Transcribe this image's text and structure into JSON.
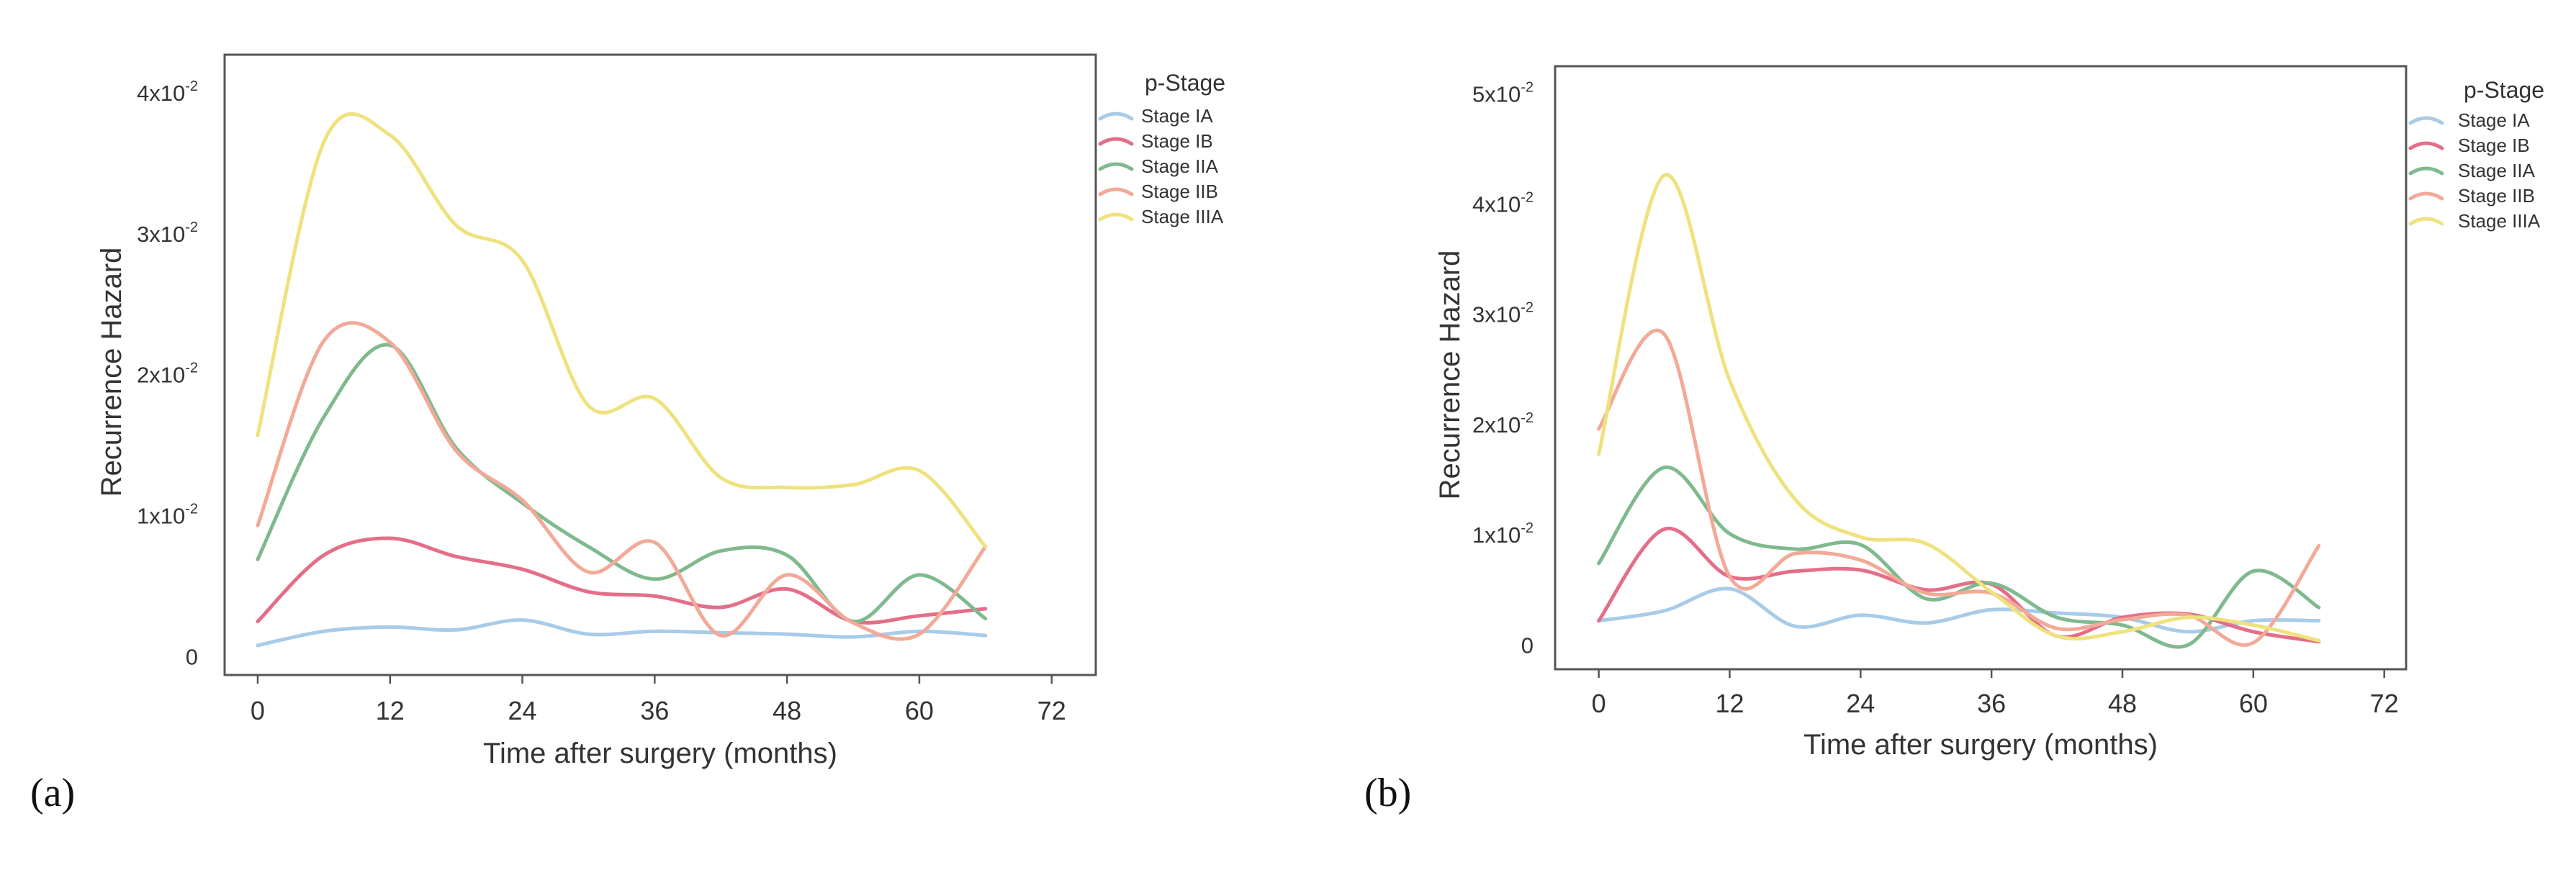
{
  "figure": {
    "colors": {
      "Stage IA": "#a8cbe8",
      "Stage IB": "#e46e88",
      "Stage IIA": "#7fb98e",
      "Stage IIB": "#f2a997",
      "Stage IIIA": "#efe27e"
    },
    "panels_text": [
      "(a)",
      "(b)"
    ]
  },
  "chart_data": [
    {
      "panel_label": "(a)",
      "type": "line",
      "smooth": true,
      "title": "",
      "xlabel": "Time after surgery (months)",
      "ylabel": "Recurrence Hazard",
      "xlim": [
        -3,
        76
      ],
      "ylim": [
        -0.0013,
        0.0427
      ],
      "xticks": [
        0,
        12,
        24,
        36,
        48,
        60,
        72
      ],
      "xtick_labels": [
        "0",
        "12",
        "24",
        "36",
        "48",
        "60",
        "72"
      ],
      "yticks": [
        {
          "value": 0,
          "base": "0",
          "exp": ""
        },
        {
          "value": 0.01,
          "base": "1x10",
          "exp": "-2"
        },
        {
          "value": 0.02,
          "base": "2x10",
          "exp": "-2"
        },
        {
          "value": 0.03,
          "base": "3x10",
          "exp": "-2"
        },
        {
          "value": 0.04,
          "base": "4x10",
          "exp": "-2"
        }
      ],
      "legend": {
        "title": "p-Stage",
        "position": "top-right outside"
      },
      "series": [
        {
          "name": "Stage IA",
          "x": [
            0,
            6,
            12,
            18,
            24,
            30,
            36,
            42,
            48,
            54,
            60,
            66
          ],
          "y": [
            0.0008,
            0.0018,
            0.0021,
            0.0019,
            0.0026,
            0.0016,
            0.0018,
            0.0017,
            0.0016,
            0.0014,
            0.0018,
            0.0015
          ]
        },
        {
          "name": "Stage IB",
          "x": [
            0,
            6,
            12,
            18,
            24,
            30,
            36,
            42,
            48,
            54,
            60,
            66
          ],
          "y": [
            0.0025,
            0.0072,
            0.0084,
            0.0071,
            0.0062,
            0.0046,
            0.0043,
            0.0035,
            0.0048,
            0.0025,
            0.0029,
            0.0034
          ]
        },
        {
          "name": "Stage IIA",
          "x": [
            0,
            6,
            12,
            18,
            24,
            30,
            36,
            42,
            48,
            54,
            60,
            66
          ],
          "y": [
            0.0069,
            0.017,
            0.0221,
            0.0148,
            0.0109,
            0.0078,
            0.0055,
            0.0075,
            0.0072,
            0.0025,
            0.0058,
            0.0027
          ]
        },
        {
          "name": "Stage IIB",
          "x": [
            0,
            6,
            12,
            18,
            24,
            30,
            36,
            42,
            48,
            54,
            60,
            66
          ],
          "y": [
            0.0093,
            0.0224,
            0.0223,
            0.0146,
            0.0111,
            0.006,
            0.0081,
            0.0015,
            0.0058,
            0.0024,
            0.0016,
            0.0078
          ]
        },
        {
          "name": "Stage IIIA",
          "x": [
            0,
            6,
            12,
            18,
            24,
            30,
            36,
            42,
            48,
            54,
            60,
            66
          ],
          "y": [
            0.0157,
            0.0365,
            0.037,
            0.0306,
            0.0281,
            0.0178,
            0.0183,
            0.0127,
            0.012,
            0.0122,
            0.0132,
            0.0078
          ]
        }
      ]
    },
    {
      "panel_label": "(b)",
      "type": "line",
      "smooth": true,
      "title": "",
      "xlabel": "Time after surgery (months)",
      "ylabel": "Recurrence Hazard",
      "xlim": [
        -4,
        74
      ],
      "ylim": [
        -0.0022,
        0.0525
      ],
      "xticks": [
        0,
        12,
        24,
        36,
        48,
        60,
        72
      ],
      "xtick_labels": [
        "0",
        "12",
        "24",
        "36",
        "48",
        "60",
        "72"
      ],
      "yticks": [
        {
          "value": 0,
          "base": "0",
          "exp": ""
        },
        {
          "value": 0.01,
          "base": "1x10",
          "exp": "-2"
        },
        {
          "value": 0.02,
          "base": "2x10",
          "exp": "-2"
        },
        {
          "value": 0.03,
          "base": "3x10",
          "exp": "-2"
        },
        {
          "value": 0.04,
          "base": "4x10",
          "exp": "-2"
        },
        {
          "value": 0.05,
          "base": "5x10",
          "exp": "-2"
        }
      ],
      "legend": {
        "title": "p-Stage",
        "position": "top-right outside"
      },
      "series": [
        {
          "name": "Stage IA",
          "x": [
            0,
            6,
            12,
            18,
            24,
            30,
            36,
            42,
            48,
            54,
            60,
            66
          ],
          "y": [
            0.0022,
            0.0031,
            0.0051,
            0.0017,
            0.0027,
            0.002,
            0.0032,
            0.0029,
            0.0025,
            0.0012,
            0.0022,
            0.0022
          ]
        },
        {
          "name": "Stage IB",
          "x": [
            0,
            6,
            12,
            18,
            24,
            30,
            36,
            42,
            48,
            54,
            60,
            66
          ],
          "y": [
            0.0022,
            0.0105,
            0.0062,
            0.0067,
            0.0068,
            0.005,
            0.0055,
            0.0008,
            0.0025,
            0.0028,
            0.0012,
            0.0003
          ]
        },
        {
          "name": "Stage IIA",
          "x": [
            0,
            6,
            12,
            18,
            24,
            30,
            36,
            42,
            48,
            54,
            60,
            66
          ],
          "y": [
            0.0074,
            0.0161,
            0.0101,
            0.0087,
            0.0091,
            0.0042,
            0.0056,
            0.0025,
            0.0018,
            0.0,
            0.0067,
            0.0034
          ]
        },
        {
          "name": "Stage IIB",
          "x": [
            0,
            6,
            12,
            18,
            24,
            30,
            36,
            42,
            48,
            54,
            60,
            66
          ],
          "y": [
            0.0196,
            0.0282,
            0.0062,
            0.0083,
            0.0077,
            0.0047,
            0.0047,
            0.0015,
            0.0023,
            0.0027,
            0.0002,
            0.009
          ]
        },
        {
          "name": "Stage IIIA",
          "x": [
            0,
            6,
            12,
            18,
            24,
            30,
            36,
            42,
            48,
            54,
            60,
            66
          ],
          "y": [
            0.0173,
            0.0426,
            0.024,
            0.0132,
            0.0098,
            0.0092,
            0.0048,
            0.0008,
            0.0012,
            0.0025,
            0.0018,
            0.0004
          ]
        }
      ]
    }
  ]
}
